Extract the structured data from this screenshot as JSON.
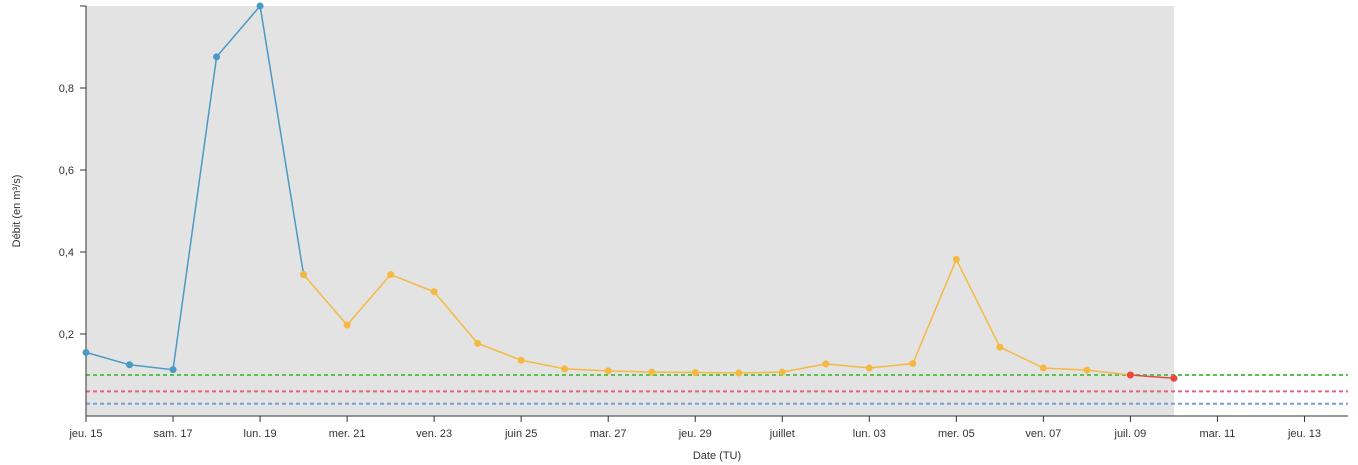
{
  "chart_data": {
    "type": "line",
    "title": "",
    "xlabel": "Date (TU)",
    "ylabel": "Débit (en m³/s)",
    "x_range": [
      "2023-06-15",
      "2023-07-14"
    ],
    "ylim": [
      0,
      1.0
    ],
    "y_ticks": [
      {
        "value": 0.2,
        "label": "0,2"
      },
      {
        "value": 0.4,
        "label": "0,4"
      },
      {
        "value": 0.6,
        "label": "0,6"
      },
      {
        "value": 0.8,
        "label": "0,8"
      }
    ],
    "x_ticks": [
      {
        "date": "2023-06-15",
        "label": "jeu. 15"
      },
      {
        "date": "2023-06-17",
        "label": "sam. 17"
      },
      {
        "date": "2023-06-19",
        "label": "lun. 19"
      },
      {
        "date": "2023-06-21",
        "label": "mer. 21"
      },
      {
        "date": "2023-06-23",
        "label": "ven. 23"
      },
      {
        "date": "2023-06-25",
        "label": "juin 25"
      },
      {
        "date": "2023-06-27",
        "label": "mar. 27"
      },
      {
        "date": "2023-06-29",
        "label": "jeu. 29"
      },
      {
        "date": "2023-07-01",
        "label": "juillet"
      },
      {
        "date": "2023-07-03",
        "label": "lun. 03"
      },
      {
        "date": "2023-07-05",
        "label": "mer. 05"
      },
      {
        "date": "2023-07-07",
        "label": "ven. 07"
      },
      {
        "date": "2023-07-09",
        "label": "juil. 09"
      },
      {
        "date": "2023-07-11",
        "label": "mar. 11"
      },
      {
        "date": "2023-07-13",
        "label": "jeu. 13"
      }
    ],
    "shaded_period": {
      "start": "2023-06-15",
      "end": "2023-07-10",
      "color": "#e3e3e3"
    },
    "series": [
      {
        "color": "#4a9ac4",
        "points": [
          {
            "x": "2023-06-15",
            "y": 0.155
          },
          {
            "x": "2023-06-16",
            "y": 0.125
          },
          {
            "x": "2023-06-17",
            "y": 0.113
          },
          {
            "x": "2023-06-18",
            "y": 0.876
          },
          {
            "x": "2023-06-19",
            "y": 1.0
          },
          {
            "x": "2023-06-20",
            "y": 0.345
          }
        ]
      },
      {
        "color": "#f5b942",
        "points": [
          {
            "x": "2023-06-20",
            "y": 0.345
          },
          {
            "x": "2023-06-21",
            "y": 0.222
          },
          {
            "x": "2023-06-22",
            "y": 0.345
          },
          {
            "x": "2023-06-23",
            "y": 0.303
          },
          {
            "x": "2023-06-24",
            "y": 0.177
          },
          {
            "x": "2023-06-25",
            "y": 0.136
          },
          {
            "x": "2023-06-26",
            "y": 0.115
          },
          {
            "x": "2023-06-27",
            "y": 0.11
          },
          {
            "x": "2023-06-28",
            "y": 0.107
          },
          {
            "x": "2023-06-29",
            "y": 0.106
          },
          {
            "x": "2023-06-30",
            "y": 0.105
          },
          {
            "x": "2023-07-01",
            "y": 0.107
          },
          {
            "x": "2023-07-02",
            "y": 0.127
          },
          {
            "x": "2023-07-03",
            "y": 0.117
          },
          {
            "x": "2023-07-04",
            "y": 0.128
          },
          {
            "x": "2023-07-05",
            "y": 0.382
          },
          {
            "x": "2023-07-06",
            "y": 0.168
          },
          {
            "x": "2023-07-07",
            "y": 0.117
          },
          {
            "x": "2023-07-08",
            "y": 0.112
          },
          {
            "x": "2023-07-09",
            "y": 0.1
          }
        ]
      },
      {
        "color": "#e8473d",
        "points": [
          {
            "x": "2023-07-09",
            "y": 0.1
          },
          {
            "x": "2023-07-10",
            "y": 0.092
          }
        ]
      }
    ],
    "thresholds": [
      {
        "y": 0.1,
        "color": "#58c24e"
      },
      {
        "y": 0.06,
        "color": "#e0637f"
      },
      {
        "y": 0.03,
        "color": "#6fa3e0"
      }
    ],
    "grid": false,
    "legend": "none"
  }
}
